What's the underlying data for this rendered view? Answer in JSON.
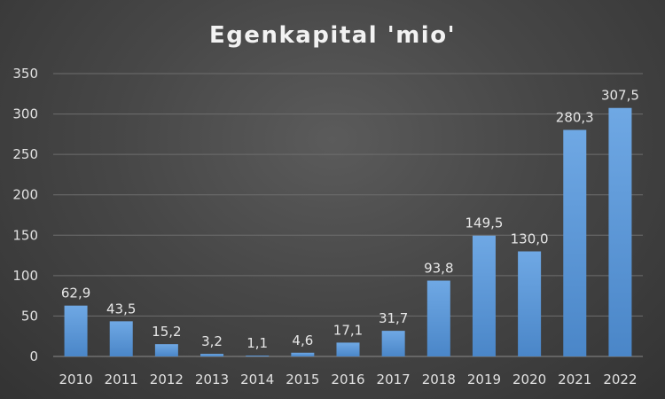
{
  "chart_data": {
    "type": "bar",
    "title": "Egenkapital 'mio'",
    "xlabel": "",
    "ylabel": "",
    "categories": [
      "2010",
      "2011",
      "2012",
      "2013",
      "2014",
      "2015",
      "2016",
      "2017",
      "2018",
      "2019",
      "2020",
      "2021",
      "2022"
    ],
    "values": [
      62.9,
      43.5,
      15.2,
      3.2,
      1.1,
      4.6,
      17.1,
      31.7,
      93.8,
      149.5,
      130.0,
      280.3,
      307.5
    ],
    "data_labels": [
      "62,9",
      "43,5",
      "15,2",
      "3,2",
      "1,1",
      "4,6",
      "17,1",
      "31,7",
      "93,8",
      "149,5",
      "130,0",
      "280,3",
      "307,5"
    ],
    "ylim": [
      0,
      350
    ],
    "yticks": [
      0,
      50,
      100,
      150,
      200,
      250,
      300,
      350
    ],
    "grid": true,
    "legend": "none",
    "colors": {
      "bar_top": "#6fa8e4",
      "bar_bottom": "#4a86c8"
    }
  }
}
